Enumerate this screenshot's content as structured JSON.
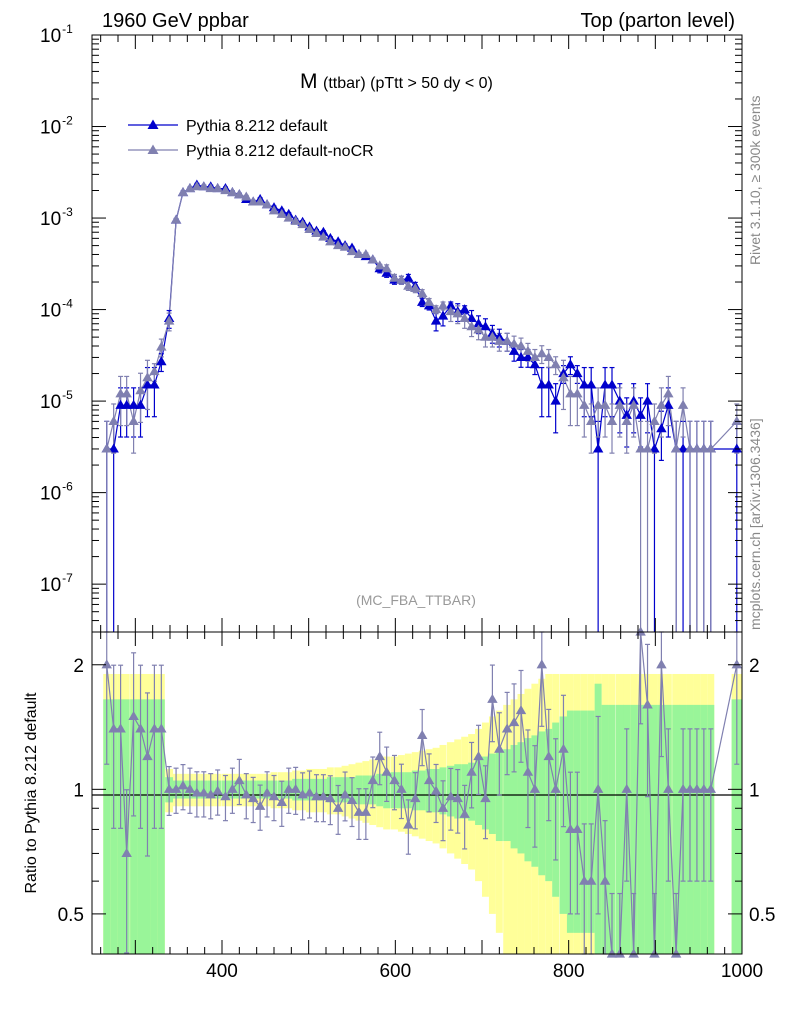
{
  "header": {
    "left": "1960 GeV ppbar",
    "right": "Top (parton level)"
  },
  "side_labels": {
    "rivet": "Rivet 3.1.10, ≥ 300k events",
    "mcplots": "mcplots.cern.ch [arXiv:1306.3436]"
  },
  "plot_title": {
    "main": "M",
    "sub": "(ttbar) (pTtt > 50 dy < 0)"
  },
  "analysis_tag": "(MC_FBA_TTBAR)",
  "colors": {
    "default": "#0000cc",
    "nocr": "#8080b0",
    "band_inner": "#99f599",
    "band_outer": "#ffff99"
  },
  "chart_data": {
    "type": "line",
    "xlim": [
      250,
      1000
    ],
    "main": {
      "yscale": "log",
      "ylim": [
        3e-08,
        0.1
      ],
      "ytick_exponents": [
        "-1",
        "-2",
        "-3",
        "-4",
        "-5",
        "-6",
        "-7"
      ],
      "ytick_values": [
        0.1,
        0.01,
        0.001,
        0.0001,
        1e-05,
        1e-06,
        1e-07
      ],
      "legend": {
        "position": "top-left",
        "entries": [
          "Pythia 8.212 default",
          "Pythia 8.212 default-noCR"
        ]
      },
      "series": [
        {
          "name": "Pythia 8.212 default",
          "x": [
            267,
            275,
            283,
            290,
            298,
            306,
            314,
            322,
            330,
            339,
            347,
            355,
            363,
            371,
            379,
            387,
            395,
            404,
            412,
            420,
            428,
            436,
            444,
            452,
            460,
            469,
            477,
            485,
            493,
            501,
            509,
            517,
            525,
            534,
            542,
            550,
            558,
            566,
            574,
            582,
            590,
            599,
            607,
            615,
            623,
            631,
            639,
            647,
            655,
            664,
            672,
            680,
            688,
            696,
            704,
            712,
            720,
            729,
            737,
            745,
            753,
            761,
            769,
            777,
            785,
            794,
            802,
            810,
            818,
            826,
            834,
            842,
            850,
            859,
            867,
            875,
            883,
            891,
            899,
            907,
            915,
            924,
            932,
            940,
            948,
            956,
            964,
            994
          ],
          "y": [
            3e-06,
            3e-06,
            9e-06,
            9e-06,
            9e-06,
            9e-06,
            1.5e-05,
            1.5e-05,
            2.7e-05,
            8e-05,
            0.00095,
            0.0019,
            0.0021,
            0.0023,
            0.0022,
            0.0022,
            0.0021,
            0.0021,
            0.0019,
            0.0018,
            0.0016,
            0.0015,
            0.0016,
            0.0014,
            0.0013,
            0.0012,
            0.0011,
            0.00095,
            0.0009,
            0.0008,
            0.00072,
            0.0007,
            0.0006,
            0.00055,
            0.0005,
            0.00047,
            0.0004,
            0.00038,
            0.00035,
            0.00028,
            0.00025,
            0.00021,
            0.00021,
            0.00022,
            0.00018,
            0.00012,
            0.00011,
            7.5e-05,
            8.5e-05,
            0.00011,
            9.5e-05,
            0.0001,
            8e-05,
            7e-05,
            6.5e-05,
            5.5e-05,
            5e-05,
            4.5e-05,
            3.5e-05,
            3e-05,
            3e-05,
            2.5e-05,
            1.5e-05,
            1.5e-05,
            1e-05,
            2e-05,
            2.5e-05,
            2e-05,
            1.5e-05,
            1.5e-05,
            3e-06,
            1.5e-05,
            1.5e-05,
            1e-05,
            7e-06,
            1e-05,
            7e-06,
            1e-05,
            3e-06,
            5e-06,
            9e-06,
            3e-06,
            3e-06,
            3e-06,
            3e-06,
            3e-06,
            3e-06,
            3e-06
          ]
        },
        {
          "name": "Pythia 8.212 default-noCR",
          "x": [
            267,
            275,
            283,
            290,
            298,
            306,
            314,
            322,
            330,
            339,
            347,
            355,
            363,
            371,
            379,
            387,
            395,
            404,
            412,
            420,
            428,
            436,
            444,
            452,
            460,
            469,
            477,
            485,
            493,
            501,
            509,
            517,
            525,
            534,
            542,
            550,
            558,
            566,
            574,
            582,
            590,
            599,
            607,
            615,
            623,
            631,
            639,
            647,
            655,
            664,
            672,
            680,
            688,
            696,
            704,
            712,
            720,
            729,
            737,
            745,
            753,
            761,
            769,
            777,
            785,
            794,
            802,
            810,
            818,
            826,
            834,
            842,
            850,
            859,
            867,
            875,
            883,
            891,
            899,
            907,
            915,
            924,
            932,
            940,
            948,
            956,
            964,
            994
          ],
          "y": [
            3e-06,
            6e-06,
            1.2e-05,
            1.2e-05,
            6e-06,
            1.3e-05,
            1.8e-05,
            2.1e-05,
            3.9e-05,
            7.5e-05,
            0.00095,
            0.0019,
            0.0021,
            0.0022,
            0.0022,
            0.0021,
            0.0021,
            0.002,
            0.0019,
            0.0018,
            0.0017,
            0.0015,
            0.0015,
            0.0014,
            0.0012,
            0.0011,
            0.001,
            0.00092,
            0.00085,
            0.00075,
            0.00068,
            0.00062,
            0.00055,
            0.0005,
            0.00048,
            0.00043,
            0.0004,
            0.0004,
            0.00035,
            0.0003,
            0.00028,
            0.00022,
            0.00021,
            0.00018,
            0.00017,
            0.00015,
            0.00012,
            0.0001,
            0.00011,
            9.5e-05,
            9e-05,
            8e-05,
            6.5e-05,
            6e-05,
            5e-05,
            5e-05,
            4.5e-05,
            4.5e-05,
            4.2e-05,
            4e-05,
            3.5e-05,
            3e-05,
            3.3e-05,
            3e-05,
            2.5e-05,
            1.8e-05,
            1.2e-05,
            1.2e-05,
            9e-06,
            6e-06,
            9e-06,
            9e-06,
            6e-06,
            9e-06,
            6e-06,
            9e-06,
            3e-06,
            3e-06,
            6e-06,
            9e-06,
            1.2e-05,
            3e-06,
            9e-06,
            3e-06,
            3e-06,
            3e-06,
            3e-06,
            6e-06
          ]
        }
      ]
    },
    "ratio": {
      "ylabel": "Ratio to Pythia 8.212 default",
      "yscale": "log",
      "ylim": [
        0.4,
        2.4
      ],
      "yticks": [
        0.5,
        1,
        2
      ],
      "ytick_labels": [
        "0.5",
        "1",
        "2"
      ],
      "xticks": [
        400,
        600,
        800,
        1000
      ],
      "xtick_labels": [
        "400",
        "600",
        "800",
        "1000"
      ],
      "reference": 1,
      "series_name": "Pythia 8.212 default-noCR",
      "x": [
        267,
        275,
        283,
        290,
        298,
        306,
        314,
        322,
        330,
        339,
        347,
        355,
        363,
        371,
        379,
        387,
        395,
        404,
        412,
        420,
        428,
        436,
        444,
        452,
        460,
        469,
        477,
        485,
        493,
        501,
        509,
        517,
        525,
        534,
        542,
        550,
        558,
        566,
        574,
        582,
        590,
        599,
        607,
        615,
        623,
        631,
        639,
        647,
        655,
        664,
        672,
        680,
        688,
        696,
        704,
        712,
        720,
        729,
        737,
        745,
        753,
        761,
        769,
        777,
        785,
        794,
        802,
        810,
        818,
        826,
        834,
        842,
        850,
        859,
        867,
        875,
        883,
        891,
        899,
        907,
        915,
        924,
        932,
        940,
        948,
        956,
        964,
        994
      ],
      "values": [
        2.0,
        1.4,
        1.4,
        0.7,
        1.5,
        1.4,
        1.2,
        1.4,
        1.4,
        1.0,
        1.0,
        1.02,
        1.0,
        0.98,
        0.98,
        0.97,
        0.99,
        0.96,
        1.0,
        1.05,
        0.97,
        0.95,
        0.91,
        0.98,
        0.96,
        0.93,
        1.0,
        1.0,
        0.97,
        0.98,
        0.96,
        0.96,
        0.95,
        0.9,
        0.97,
        0.94,
        0.88,
        0.88,
        1.05,
        1.2,
        1.1,
        1.05,
        1.0,
        0.82,
        0.95,
        1.35,
        1.05,
        0.99,
        0.9,
        0.96,
        0.95,
        0.87,
        1.1,
        1.2,
        0.95,
        1.65,
        1.25,
        1.4,
        1.45,
        1.55,
        1.1,
        1.0,
        2.0,
        1.2,
        1.0,
        1.25,
        0.8,
        0.8,
        0.6,
        0.6,
        1.0,
        0.6,
        0.4,
        0.4,
        1.0,
        0.4,
        2.4,
        1.6,
        0.4,
        2.0,
        1.0,
        0.4,
        1.0,
        1.0,
        1.0,
        1.0,
        1.0,
        2.0
      ],
      "band_inner": [
        0.65,
        0.65,
        0.65,
        0.65,
        0.65,
        0.65,
        0.65,
        0.65,
        0.65,
        0.07,
        0.05,
        0.05,
        0.05,
        0.05,
        0.05,
        0.05,
        0.05,
        0.05,
        0.05,
        0.05,
        0.05,
        0.05,
        0.05,
        0.05,
        0.05,
        0.05,
        0.05,
        0.06,
        0.06,
        0.06,
        0.06,
        0.06,
        0.07,
        0.07,
        0.07,
        0.07,
        0.08,
        0.08,
        0.08,
        0.09,
        0.1,
        0.1,
        0.1,
        0.1,
        0.11,
        0.11,
        0.12,
        0.12,
        0.13,
        0.14,
        0.15,
        0.15,
        0.16,
        0.18,
        0.2,
        0.22,
        0.25,
        0.25,
        0.28,
        0.3,
        0.33,
        0.35,
        0.38,
        0.4,
        0.45,
        0.5,
        0.55,
        0.55,
        0.55,
        0.55,
        0.8,
        0.6,
        0.6,
        0.6,
        0.6,
        0.6,
        0.6,
        0.6,
        0.6,
        0.6,
        0.6,
        0.6,
        0.6,
        0.6,
        0.6,
        0.6,
        0.6,
        0.65
      ],
      "band_outer": [
        0.9,
        0.9,
        0.9,
        0.9,
        0.9,
        0.9,
        0.9,
        0.9,
        0.9,
        0.12,
        0.09,
        0.09,
        0.09,
        0.09,
        0.09,
        0.09,
        0.09,
        0.09,
        0.09,
        0.09,
        0.09,
        0.09,
        0.09,
        0.09,
        0.1,
        0.1,
        0.1,
        0.11,
        0.11,
        0.12,
        0.12,
        0.12,
        0.13,
        0.13,
        0.14,
        0.15,
        0.16,
        0.17,
        0.18,
        0.19,
        0.2,
        0.2,
        0.21,
        0.22,
        0.23,
        0.24,
        0.25,
        0.26,
        0.28,
        0.3,
        0.32,
        0.34,
        0.36,
        0.4,
        0.45,
        0.5,
        0.55,
        0.6,
        0.65,
        0.7,
        0.75,
        0.8,
        0.85,
        0.9,
        0.9,
        0.9,
        0.9,
        0.9,
        0.9,
        0.9,
        0.9,
        0.9,
        0.9,
        0.9,
        0.9,
        0.9,
        0.9,
        0.9,
        0.9,
        0.9,
        0.9,
        0.9,
        0.9,
        0.9,
        0.9,
        0.9,
        0.9,
        0.9
      ]
    }
  }
}
